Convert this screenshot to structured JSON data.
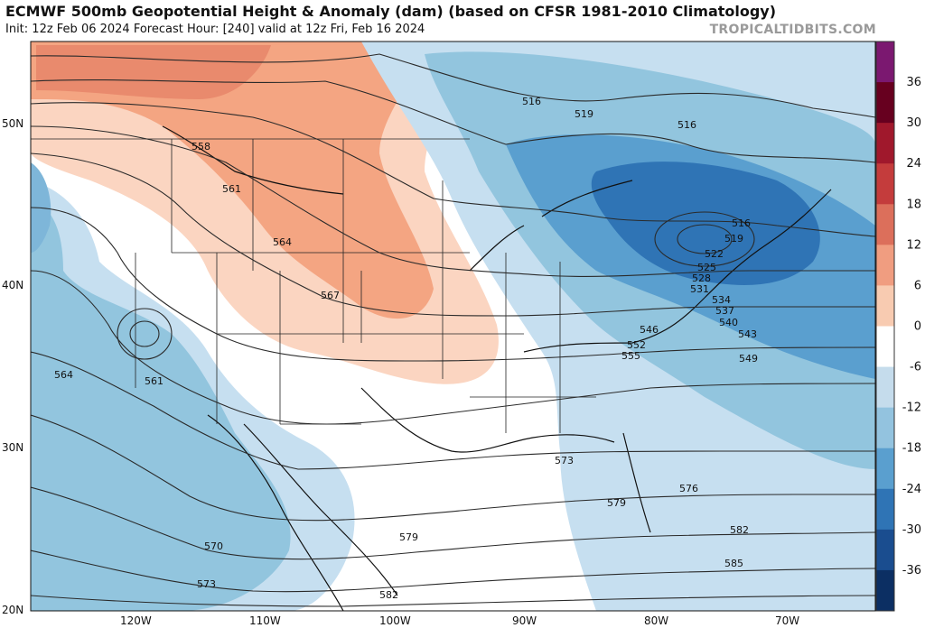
{
  "header": {
    "title": "ECMWF 500mb Geopotential Height & Anomaly (dam) (based on CFSR 1981-2010 Climatology)",
    "subtitle": "Init: 12z Feb 06 2024   Forecast Hour: [240]   valid at 12z Fri, Feb 16 2024",
    "watermark": "TROPICALTIDBITS.COM"
  },
  "map": {
    "lat_labels": [
      {
        "text": "50N",
        "lat": 50
      },
      {
        "text": "40N",
        "lat": 40
      },
      {
        "text": "30N",
        "lat": 30
      },
      {
        "text": "20N",
        "lat": 20
      }
    ],
    "lon_labels": [
      {
        "text": "120W",
        "lon": -120
      },
      {
        "text": "110W",
        "lon": -110
      },
      {
        "text": "100W",
        "lon": -100
      },
      {
        "text": "90W",
        "lon": -90
      },
      {
        "text": "80W",
        "lon": -80
      },
      {
        "text": "70W",
        "lon": -70
      }
    ],
    "contour_labels": [
      "516",
      "519",
      "516",
      "558",
      "561",
      "564",
      "567",
      "516",
      "519",
      "522",
      "525",
      "528",
      "531",
      "534",
      "537",
      "540",
      "543",
      "546",
      "549",
      "552",
      "555",
      "561",
      "564",
      "570",
      "573",
      "573",
      "576",
      "579",
      "579",
      "582",
      "582",
      "585"
    ],
    "colors": {
      "positive_anomaly": "#f4a582",
      "strong_positive": "#ea8a6c",
      "negative_anomaly": "#92c5de",
      "strong_negative": "#4393c3",
      "deep_negative": "#2166ac"
    }
  },
  "colorbar": {
    "labels": [
      "36",
      "30",
      "24",
      "18",
      "12",
      "6",
      "0",
      "-6",
      "-12",
      "-18",
      "-24",
      "-30",
      "-36"
    ],
    "colors": [
      "#7b1870",
      "#67001f",
      "#a0182c",
      "#c43c3c",
      "#dc6f5b",
      "#f09d80",
      "#f8cbb1",
      "#ffffff",
      "#c5dcec",
      "#93c3df",
      "#5a9fcf",
      "#2f74b5",
      "#1a4d8f",
      "#0c2f63"
    ]
  }
}
